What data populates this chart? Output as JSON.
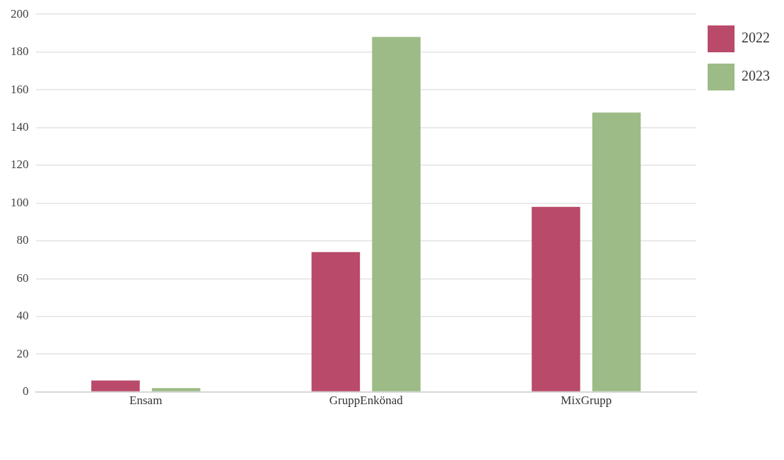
{
  "chart_data": {
    "type": "bar",
    "categories": [
      "Ensam",
      "GruppEnkönad",
      "MixGrupp"
    ],
    "series": [
      {
        "name": "2022",
        "color": "#b94a69",
        "values": [
          6,
          74,
          98
        ]
      },
      {
        "name": "2023",
        "color": "#9dbb86",
        "values": [
          2,
          188,
          148
        ]
      }
    ],
    "ylim": [
      0,
      200
    ],
    "yticks": [
      0,
      20,
      40,
      60,
      80,
      100,
      120,
      140,
      160,
      180,
      200
    ],
    "grid": "y",
    "legend": "top right"
  }
}
